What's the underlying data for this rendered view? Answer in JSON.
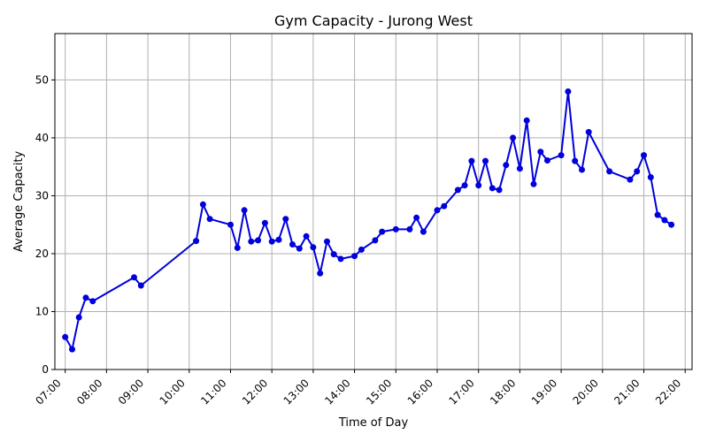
{
  "chart_data": {
    "type": "line",
    "title": "Gym Capacity - Jurong West",
    "xlabel": "Time of Day",
    "ylabel": "Average Capacity",
    "x_ticks": [
      "07:00",
      "08:00",
      "09:00",
      "10:00",
      "11:00",
      "12:00",
      "13:00",
      "14:00",
      "15:00",
      "16:00",
      "17:00",
      "18:00",
      "19:00",
      "20:00",
      "21:00",
      "22:00"
    ],
    "y_ticks": [
      0,
      10,
      20,
      30,
      40,
      50
    ],
    "xlim": [
      "06:45",
      "22:10"
    ],
    "ylim": [
      0,
      58
    ],
    "grid": true,
    "color": "#0000dd",
    "series": [
      {
        "x": [
          "07:00",
          "07:10",
          "07:20",
          "07:30",
          "07:40",
          "08:40",
          "08:50",
          "10:10",
          "10:20",
          "10:30",
          "11:00",
          "11:10",
          "11:20",
          "11:30",
          "11:40",
          "11:50",
          "12:00",
          "12:10",
          "12:20",
          "12:30",
          "12:40",
          "12:50",
          "13:00",
          "13:10",
          "13:20",
          "13:30",
          "13:40",
          "14:00",
          "14:10",
          "14:30",
          "14:40",
          "15:00",
          "15:20",
          "15:30",
          "15:40",
          "16:00",
          "16:10",
          "16:30",
          "16:40",
          "16:50",
          "17:00",
          "17:10",
          "17:20",
          "17:30",
          "17:40",
          "17:50",
          "18:00",
          "18:10",
          "18:20",
          "18:30",
          "18:40",
          "19:00",
          "19:10",
          "19:20",
          "19:30",
          "19:40",
          "20:10",
          "20:40",
          "20:50",
          "21:00",
          "21:10",
          "21:20",
          "21:30",
          "21:40"
        ],
        "y": [
          5.6,
          3.5,
          9.0,
          12.4,
          11.8,
          15.9,
          14.5,
          22.2,
          28.5,
          26.0,
          25.0,
          21.0,
          27.5,
          22.1,
          22.3,
          25.3,
          22.1,
          22.4,
          26.0,
          21.6,
          20.9,
          23.0,
          21.1,
          16.6,
          22.1,
          19.9,
          19.1,
          19.6,
          20.7,
          22.3,
          23.8,
          24.2,
          24.2,
          26.2,
          23.8,
          27.5,
          28.2,
          31.0,
          31.8,
          36.0,
          31.8,
          36.0,
          31.3,
          31.0,
          35.3,
          40.0,
          34.7,
          43.0,
          32.0,
          37.6,
          36.1,
          37.0,
          48.0,
          36.0,
          34.5,
          41.0,
          34.2,
          32.8,
          34.2,
          37.0,
          33.2,
          26.7,
          25.8,
          25.0
        ]
      }
    ]
  }
}
